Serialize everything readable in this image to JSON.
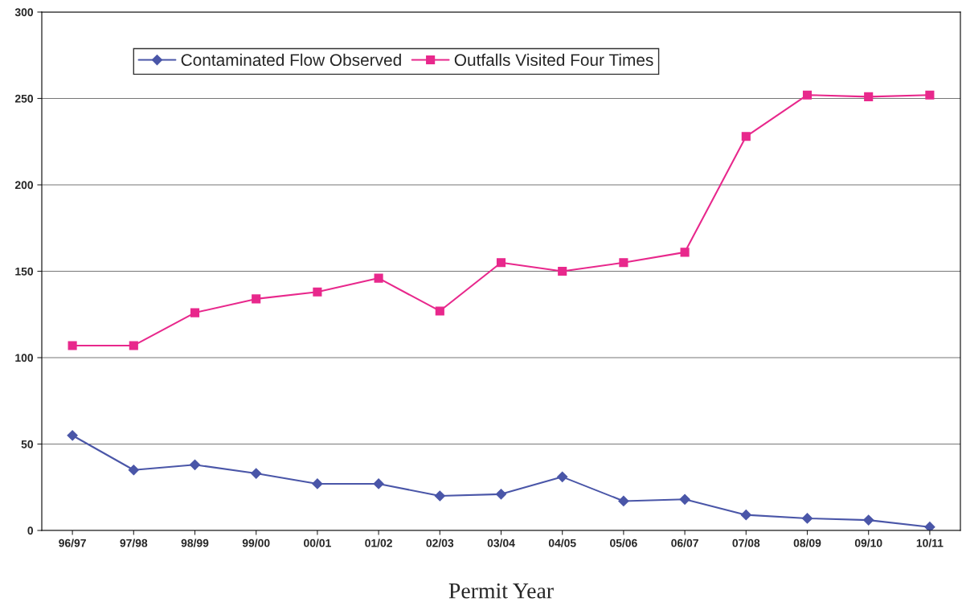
{
  "chart_data": {
    "type": "line",
    "xlabel": "Permit Year",
    "categories": [
      "96/97",
      "97/98",
      "98/99",
      "99/00",
      "00/01",
      "01/02",
      "02/03",
      "03/04",
      "04/05",
      "05/06",
      "06/07",
      "07/08",
      "08/09",
      "09/10",
      "10/11"
    ],
    "series": [
      {
        "name": "Contaminated Flow Observed",
        "color": "#4a56a8",
        "marker": "diamond",
        "values": [
          55,
          35,
          38,
          33,
          27,
          27,
          20,
          21,
          31,
          17,
          18,
          9,
          7,
          6,
          2
        ]
      },
      {
        "name": "Outfalls Visited Four Times",
        "color": "#e8288c",
        "marker": "square",
        "values": [
          107,
          107,
          126,
          134,
          138,
          146,
          127,
          155,
          150,
          155,
          161,
          228,
          252,
          251,
          252
        ]
      }
    ],
    "ylim": [
      0,
      300
    ],
    "yticks": [
      0,
      50,
      100,
      150,
      200,
      250,
      300
    ],
    "grid": "y",
    "legend": "top left",
    "line_style": "solid"
  }
}
